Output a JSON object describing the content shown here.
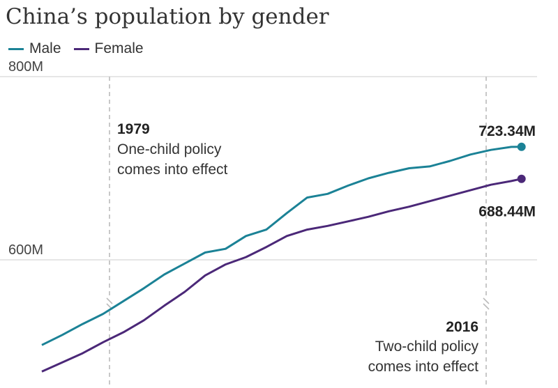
{
  "colors": {
    "male": "#1b8296",
    "female": "#4b2878",
    "grid": "#cccccc",
    "axis_text": "#444444"
  },
  "chart_data": {
    "type": "line",
    "title": "China’s population by gender",
    "y_ticks": [
      {
        "value": 800,
        "label": "800M"
      },
      {
        "value": 600,
        "label": "600M"
      }
    ],
    "ylim": [
      480,
      800
    ],
    "xlim": [
      1974,
      2021.5
    ],
    "grid": true,
    "legend": "top-left",
    "series": [
      {
        "name": "Male",
        "color": "#1b8296",
        "x": [
          1974,
          1976,
          1978,
          1980,
          1982,
          1984,
          1986,
          1988,
          1990,
          1992,
          1994,
          1996,
          1998,
          2000,
          2002,
          2004,
          2006,
          2008,
          2010,
          2012,
          2014,
          2016,
          2018,
          2020,
          2021
        ],
        "y": [
          507,
          518,
          530,
          541,
          555,
          569,
          584,
          596,
          608,
          612,
          626,
          633,
          651,
          668,
          672,
          681,
          689,
          695,
          700,
          702,
          708,
          715,
          720,
          723.3,
          723.34
        ],
        "end_label": "723.34M"
      },
      {
        "name": "Female",
        "color": "#4b2878",
        "x": [
          1974,
          1976,
          1978,
          1980,
          1982,
          1984,
          1986,
          1988,
          1990,
          1992,
          1994,
          1996,
          1998,
          2000,
          2002,
          2004,
          2006,
          2008,
          2010,
          2012,
          2014,
          2016,
          2018,
          2020,
          2021
        ],
        "y": [
          478,
          488,
          498,
          510,
          521,
          534,
          550,
          565,
          583,
          595,
          603,
          614,
          626,
          633,
          637,
          642,
          647,
          653,
          658,
          664,
          670,
          676,
          682,
          686,
          688.44
        ],
        "end_label": "688.44M"
      }
    ],
    "annotations": [
      {
        "x": 1979,
        "year": "1979",
        "lines": [
          "One-child policy",
          "comes into effect"
        ]
      },
      {
        "x": 2016,
        "year": "2016",
        "lines": [
          "Two-child policy",
          "comes into effect"
        ]
      }
    ]
  }
}
